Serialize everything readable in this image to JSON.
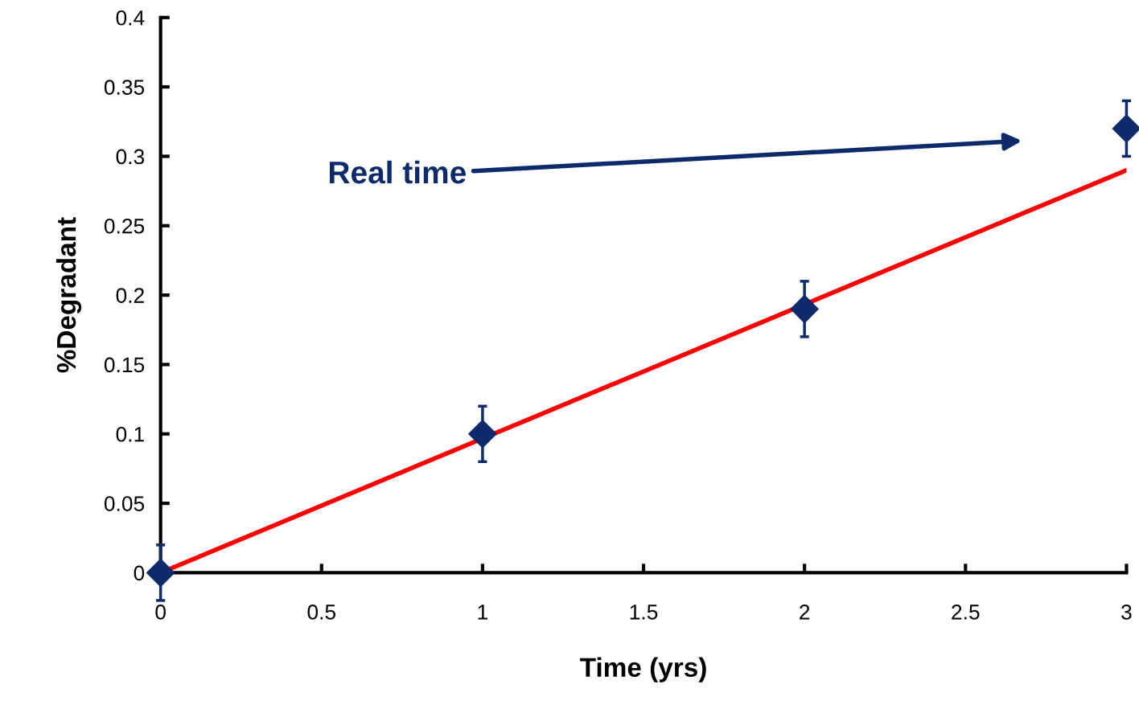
{
  "chart_data": {
    "type": "scatter",
    "xlabel": "Time (yrs)",
    "ylabel": "%Degradant",
    "xlim": [
      0,
      3
    ],
    "ylim": [
      0,
      0.4
    ],
    "xticks": [
      0,
      0.5,
      1,
      1.5,
      2,
      2.5,
      3
    ],
    "yticks": [
      0,
      0.05,
      0.1,
      0.15,
      0.2,
      0.25,
      0.3,
      0.35,
      0.4
    ],
    "grid": false,
    "legend": false,
    "marker": "diamond",
    "series": [
      {
        "color": "#0d2a6b",
        "x": [
          0,
          1,
          2,
          3
        ],
        "values": [
          0,
          0.1,
          0.19,
          0.32
        ],
        "errors": [
          0.02,
          0.02,
          0.02,
          0.02
        ]
      },
      {
        "type": "line",
        "color": "#ff0000",
        "x": [
          0,
          3
        ],
        "values": [
          0,
          0.29
        ],
        "marker": "none"
      }
    ],
    "annotations": [
      "Real time"
    ]
  }
}
